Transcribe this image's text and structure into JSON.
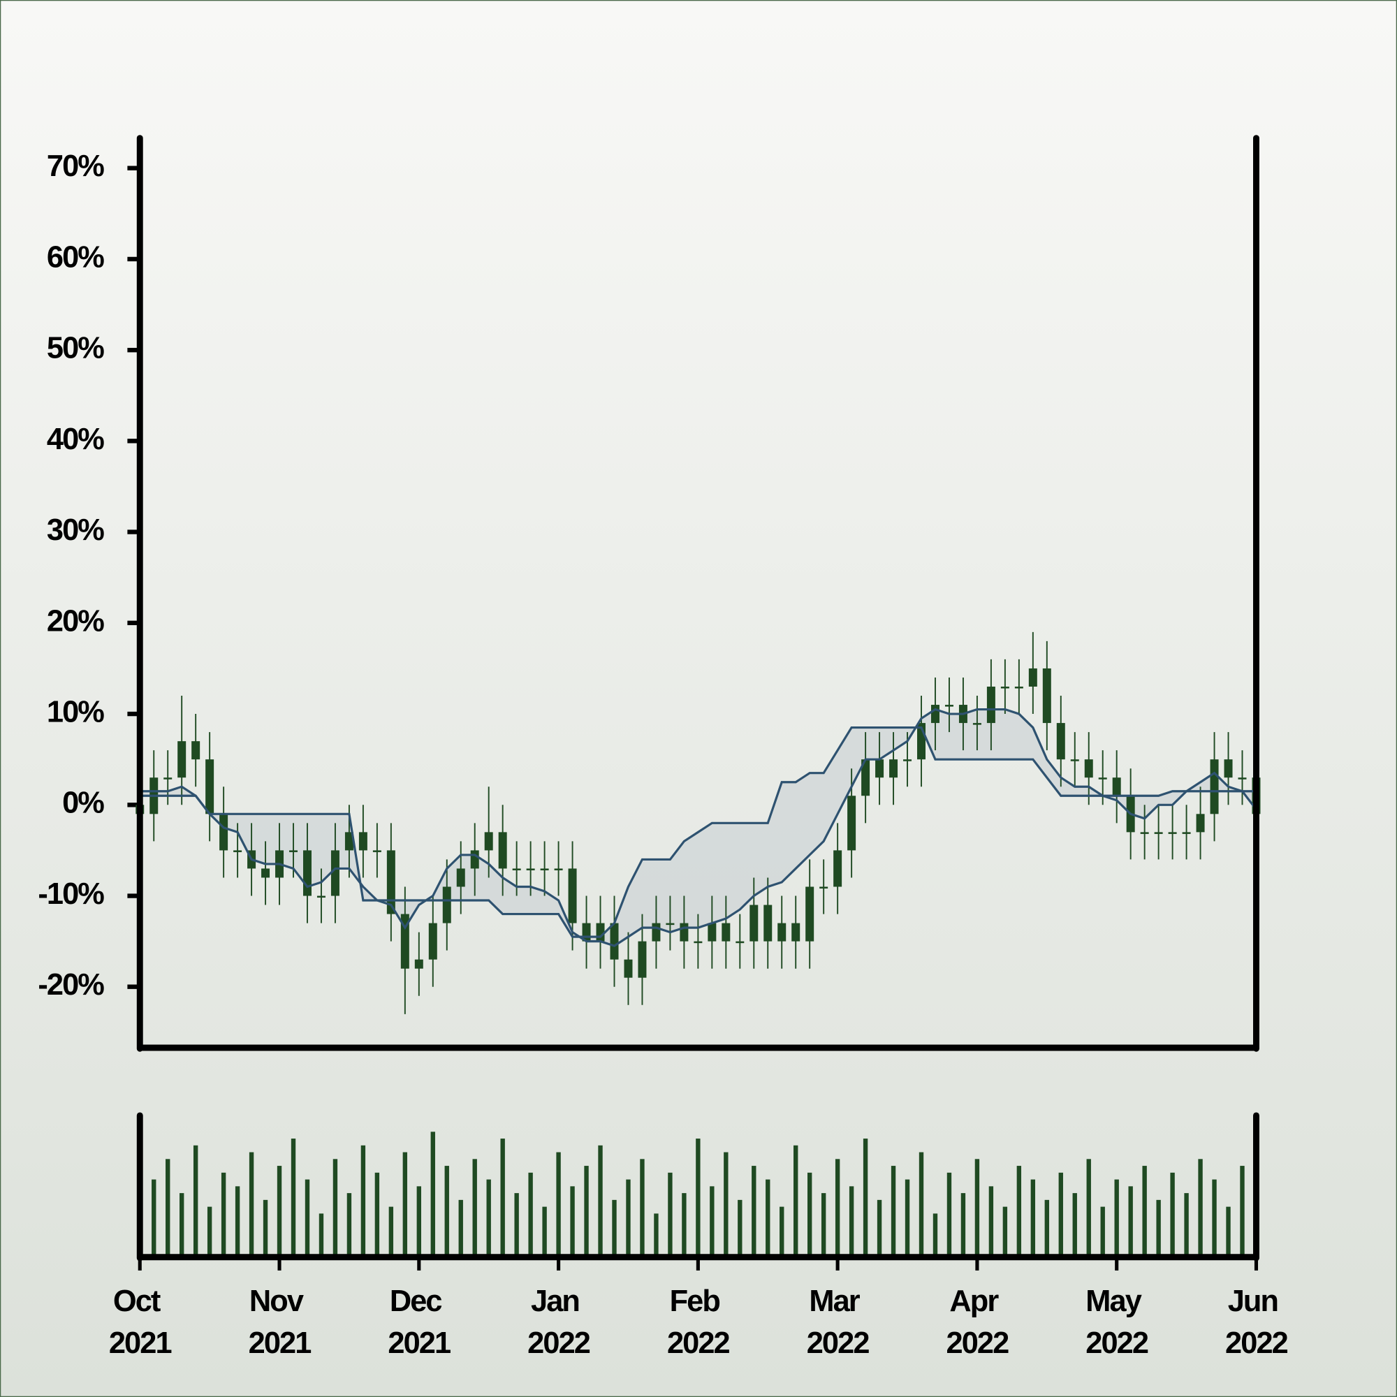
{
  "chart_data": {
    "type": "candlestick",
    "x": [
      0,
      0.1,
      0.2,
      0.3,
      0.4,
      0.5,
      0.6,
      0.7,
      0.8,
      0.9,
      1,
      1.1,
      1.2,
      1.3,
      1.4,
      1.5,
      1.6,
      1.7,
      1.8,
      1.9,
      2,
      2.1,
      2.2,
      2.3,
      2.4,
      2.5,
      2.6,
      2.7,
      2.8,
      2.9,
      3,
      3.1,
      3.2,
      3.3,
      3.4,
      3.5,
      3.6,
      3.7,
      3.8,
      3.9,
      4,
      4.1,
      4.2,
      4.3,
      4.4,
      4.5,
      4.6,
      4.7,
      4.8,
      4.9,
      5,
      5.1,
      5.2,
      5.3,
      5.4,
      5.5,
      5.6,
      5.7,
      5.8,
      5.9,
      6,
      6.1,
      6.2,
      6.3,
      6.4,
      6.5,
      6.6,
      6.7,
      6.8,
      6.9,
      7,
      7.1,
      7.2,
      7.3,
      7.4,
      7.5,
      7.6,
      7.7,
      7.8,
      7.9,
      8
    ],
    "open": [
      0,
      -1,
      3,
      3,
      7,
      5,
      -1,
      -5,
      -5,
      -7,
      -8,
      -5,
      -5,
      -10,
      -10,
      -5,
      -3,
      -5,
      -5,
      -12,
      -18,
      -17,
      -13,
      -9,
      -7,
      -5,
      -3,
      -7,
      -7,
      -7,
      -7,
      -7,
      -13,
      -15,
      -13,
      -17,
      -19,
      -15,
      -13,
      -13,
      -15,
      -15,
      -13,
      -15,
      -15,
      -11,
      -15,
      -13,
      -15,
      -9,
      -9,
      -5,
      1,
      5,
      3,
      5,
      5,
      9,
      11,
      11,
      9,
      9,
      13,
      13,
      13,
      15,
      9,
      5,
      5,
      3,
      3,
      1,
      -3,
      -3,
      -3,
      -3,
      -3,
      -1,
      5,
      3,
      3
    ],
    "high": [
      3,
      6,
      6,
      12,
      10,
      8,
      2,
      -2,
      -2,
      -4,
      -2,
      -2,
      -2,
      -7,
      -2,
      0,
      0,
      -2,
      -2,
      -9,
      -14,
      -10,
      -6,
      -4,
      -2,
      2,
      0,
      -4,
      -4,
      -4,
      -4,
      -4,
      -10,
      -10,
      -10,
      -14,
      -12,
      -10,
      -10,
      -10,
      -12,
      -10,
      -10,
      -12,
      -8,
      -8,
      -10,
      -10,
      -6,
      -6,
      -2,
      4,
      8,
      8,
      8,
      8,
      12,
      14,
      14,
      14,
      12,
      16,
      16,
      16,
      19,
      18,
      12,
      8,
      8,
      6,
      6,
      4,
      0,
      0,
      0,
      0,
      2,
      8,
      8,
      6,
      6
    ],
    "low": [
      -4,
      -4,
      0,
      0,
      2,
      -4,
      -8,
      -8,
      -10,
      -11,
      -11,
      -8,
      -13,
      -13,
      -13,
      -8,
      -8,
      -8,
      -15,
      -23,
      -21,
      -20,
      -16,
      -12,
      -10,
      -8,
      -10,
      -10,
      -10,
      -10,
      -10,
      -16,
      -18,
      -18,
      -20,
      -22,
      -22,
      -18,
      -16,
      -18,
      -18,
      -18,
      -18,
      -18,
      -18,
      -18,
      -18,
      -18,
      -18,
      -12,
      -12,
      -8,
      -2,
      0,
      0,
      2,
      2,
      6,
      8,
      6,
      6,
      6,
      10,
      10,
      10,
      6,
      2,
      2,
      0,
      0,
      -2,
      -6,
      -6,
      -6,
      -6,
      -6,
      -6,
      -4,
      0,
      0,
      -4
    ],
    "close": [
      -1,
      3,
      3,
      7,
      5,
      -1,
      -5,
      -5,
      -7,
      -8,
      -5,
      -5,
      -10,
      -10,
      -5,
      -3,
      -5,
      -5,
      -12,
      -18,
      -17,
      -13,
      -9,
      -7,
      -5,
      -3,
      -7,
      -7,
      -7,
      -7,
      -7,
      -13,
      -15,
      -13,
      -17,
      -19,
      -15,
      -13,
      -13,
      -15,
      -15,
      -13,
      -15,
      -15,
      -11,
      -15,
      -13,
      -15,
      -9,
      -9,
      -5,
      1,
      5,
      3,
      5,
      5,
      9,
      11,
      11,
      9,
      9,
      13,
      13,
      13,
      15,
      9,
      5,
      5,
      3,
      3,
      1,
      -3,
      -3,
      -3,
      -3,
      -3,
      -1,
      5,
      3,
      3,
      -1
    ],
    "candle_color": "#1f4a22",
    "bands": [
      {
        "color": "#2e5270",
        "values": [
          1,
          1,
          1,
          1,
          1,
          -1,
          -1,
          -1,
          -1,
          -1,
          -1,
          -1,
          -1,
          -1,
          -1,
          -1,
          -10.5,
          -10.5,
          -10.5,
          -10.5,
          -10.5,
          -10.5,
          -10.5,
          -10.5,
          -10.5,
          -10.5,
          -12,
          -12,
          -12,
          -12,
          -12,
          -14.5,
          -14.5,
          -14.5,
          -13,
          -9,
          -6,
          -6,
          -6,
          -4,
          -3,
          -2,
          -2,
          -2,
          -2,
          -2,
          2.5,
          2.5,
          3.5,
          3.5,
          6,
          8.5,
          8.5,
          8.5,
          8.5,
          8.5,
          8.5,
          5,
          5,
          5,
          5,
          5,
          5,
          5,
          5,
          3,
          1,
          1,
          1,
          1,
          1,
          1,
          1,
          1,
          1.5,
          1.5,
          1.5,
          1.5,
          1.5,
          1.5,
          1.5
        ]
      },
      {
        "color": "#2e5270",
        "values": [
          1.5,
          1.5,
          1.5,
          2,
          1,
          -1,
          -2.5,
          -3,
          -6,
          -6.5,
          -6.5,
          -7,
          -9,
          -8.5,
          -7,
          -7,
          -9,
          -10.5,
          -11,
          -13.5,
          -11,
          -10,
          -7,
          -5.5,
          -5.5,
          -6.5,
          -8,
          -9,
          -9,
          -9.5,
          -10.5,
          -14,
          -15,
          -15,
          -15.5,
          -14.5,
          -13.5,
          -13.5,
          -14,
          -13.5,
          -13.5,
          -13,
          -12.5,
          -11.5,
          -10,
          -9,
          -8.5,
          -7,
          -5.5,
          -4,
          -1,
          2,
          5,
          5,
          6,
          7,
          9.5,
          10.5,
          10,
          10,
          10.5,
          10.5,
          10.5,
          10,
          8.5,
          5,
          3,
          2,
          2,
          1,
          0.5,
          -1,
          -1.5,
          0,
          0,
          1.5,
          2.5,
          3.5,
          2,
          1.5,
          -0.5
        ]
      }
    ],
    "band_fill": "#c9d1d4",
    "volume": [
      30,
      55,
      70,
      45,
      80,
      35,
      60,
      50,
      75,
      40,
      65,
      85,
      55,
      30,
      70,
      45,
      80,
      60,
      35,
      75,
      50,
      90,
      65,
      40,
      70,
      55,
      85,
      45,
      60,
      35,
      75,
      50,
      65,
      80,
      40,
      55,
      70,
      30,
      60,
      45,
      85,
      50,
      75,
      40,
      65,
      55,
      35,
      80,
      60,
      45,
      70,
      50,
      85,
      40,
      65,
      55,
      75,
      30,
      60,
      45,
      70,
      50,
      35,
      65,
      55,
      40,
      60,
      45,
      70,
      35,
      55,
      50,
      65,
      40,
      60,
      45,
      70,
      55,
      35,
      65,
      40
    ],
    "volume_color": "#1f4a22",
    "volume_ylim": [
      0,
      100
    ],
    "xlim": [
      0,
      8
    ],
    "xticks": [
      {
        "value": 0,
        "label": "Oct 2021"
      },
      {
        "value": 1,
        "label": "Nov 2021"
      },
      {
        "value": 2,
        "label": "Dec 2021"
      },
      {
        "value": 3,
        "label": "Jan 2022"
      },
      {
        "value": 4,
        "label": "Feb 2022"
      },
      {
        "value": 5,
        "label": "Mar 2022"
      },
      {
        "value": 6,
        "label": "Apr 2022"
      },
      {
        "value": 7,
        "label": "May 2022"
      },
      {
        "value": 8,
        "label": "Jun 2022"
      }
    ],
    "ylim": [
      -26.7,
      73.3
    ],
    "yticks": [
      {
        "value": -20,
        "label": "-20%"
      },
      {
        "value": -10,
        "label": "-10%"
      },
      {
        "value": 0,
        "label": "0%"
      },
      {
        "value": 10,
        "label": "10%"
      },
      {
        "value": 20,
        "label": "20%"
      },
      {
        "value": 30,
        "label": "30%"
      },
      {
        "value": 40,
        "label": "40%"
      },
      {
        "value": 50,
        "label": "50%"
      },
      {
        "value": 60,
        "label": "60%"
      },
      {
        "value": 70,
        "label": "70%"
      }
    ]
  }
}
